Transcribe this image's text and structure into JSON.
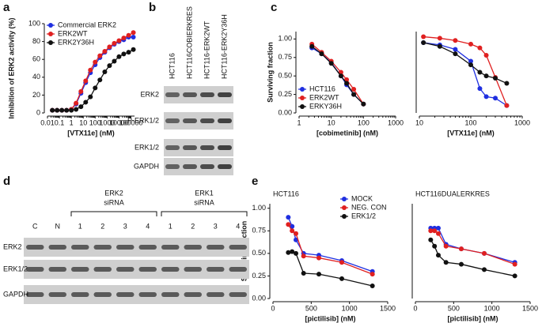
{
  "panel_labels": [
    "a",
    "b",
    "c",
    "d",
    "e"
  ],
  "chart_data": [
    {
      "type": "line",
      "xlabel": "[VTX11e] (nM)",
      "ylabel": "Inhibition of ERK2 activity (%)",
      "xscale": "log",
      "xlim": [
        0.01,
        200000
      ],
      "xticks": [
        0.01,
        0.1,
        1,
        10,
        100,
        1000,
        10000,
        100000
      ],
      "ylim": [
        0,
        100
      ],
      "yticks": [
        0,
        20,
        40,
        60,
        80,
        100
      ],
      "legend": "top-left",
      "x": [
        0.0256,
        0.064,
        0.16,
        0.4,
        1,
        2.5,
        6.4,
        16,
        40,
        100,
        250,
        640,
        1600,
        4000,
        10000,
        25000,
        64000,
        160000
      ],
      "series": [
        {
          "name": "Commercial ERK2",
          "color": "#1f2fe0",
          "values": [
            3,
            3,
            3,
            3,
            4,
            10,
            22,
            34,
            45,
            54,
            62,
            68,
            73,
            77,
            80,
            82,
            85,
            85
          ]
        },
        {
          "name": "ERK2WT",
          "color": "#e02020",
          "values": [
            3,
            3,
            3,
            3,
            4,
            11,
            24,
            36,
            48,
            57,
            64,
            69,
            74,
            78,
            81,
            84,
            87,
            90
          ]
        },
        {
          "name": "ERK2Y36H",
          "color": "#111111",
          "values": [
            3,
            3,
            3,
            3,
            3,
            4,
            7,
            12,
            18,
            28,
            37,
            46,
            53,
            58,
            63,
            66,
            68,
            71
          ]
        }
      ]
    },
    {
      "type": "line",
      "xlabel": "[cobimetinib] (nM)",
      "ylabel": "Surviving fraction",
      "xscale": "log",
      "xlim": [
        1,
        1000
      ],
      "xticks": [
        1,
        10,
        100,
        1000
      ],
      "ylim": [
        0,
        1.1
      ],
      "yticks": [
        {
          "value": 0,
          "label": "0.00"
        },
        {
          "value": 0.25,
          "label": "0.25"
        },
        {
          "value": 0.5,
          "label": "0.50"
        },
        {
          "value": 0.75,
          "label": "0.75"
        },
        {
          "value": 1,
          "label": "1.00"
        }
      ],
      "legend": "bottom-left",
      "x": [
        2.5,
        5,
        10,
        20,
        30,
        50,
        100
      ],
      "series": [
        {
          "name": "HCT116",
          "color": "#1f2fe0",
          "values": [
            0.88,
            0.8,
            0.68,
            0.5,
            0.38,
            0.25,
            0.12
          ]
        },
        {
          "name": "ERK2WT",
          "color": "#e02020",
          "values": [
            0.93,
            0.82,
            0.7,
            0.55,
            0.45,
            0.32,
            0.12
          ]
        },
        {
          "name": "ERKY36H",
          "color": "#111111",
          "values": [
            0.9,
            0.8,
            0.67,
            0.5,
            0.4,
            0.25,
            0.12
          ]
        }
      ]
    },
    {
      "type": "line",
      "xlabel": "[VTX11e] (nM)",
      "xscale": "log",
      "xlim": [
        10,
        1000
      ],
      "xticks": [
        10,
        100,
        1000
      ],
      "ylim": [
        0,
        1.1
      ],
      "x": [
        12,
        25,
        50,
        100,
        150,
        200,
        300,
        500
      ],
      "series": [
        {
          "color": "#1f2fe0",
          "values": [
            0.95,
            0.92,
            0.86,
            0.7,
            0.33,
            0.22,
            0.2,
            0.1
          ]
        },
        {
          "color": "#e02020",
          "values": [
            1.03,
            1.01,
            0.98,
            0.93,
            0.88,
            0.78,
            0.48,
            0.1
          ]
        },
        {
          "color": "#111111",
          "values": [
            0.95,
            0.9,
            0.8,
            0.65,
            0.55,
            0.5,
            0.47,
            0.4
          ]
        }
      ]
    },
    {
      "type": "line",
      "title": "HCT116",
      "xlabel": "[pictilisib] (nM)",
      "ylabel": "Surviving fraction",
      "xlim": [
        0,
        1500
      ],
      "xticks": [
        0,
        500,
        1000,
        1500
      ],
      "ylim": [
        0,
        1.05
      ],
      "yticks": [
        {
          "value": 0,
          "label": "0.00"
        },
        {
          "value": 0.25,
          "label": "0.25"
        },
        {
          "value": 0.5,
          "label": "0.50"
        },
        {
          "value": 0.75,
          "label": "0.75"
        },
        {
          "value": 1,
          "label": "1.00"
        }
      ],
      "legend": "top-right",
      "x": [
        200,
        250,
        300,
        400,
        600,
        900,
        1300
      ],
      "series": [
        {
          "name": "MOCK",
          "color": "#1f2fe0",
          "values": [
            0.9,
            0.8,
            0.65,
            0.5,
            0.48,
            0.42,
            0.3
          ]
        },
        {
          "name": "NEG. CON",
          "color": "#e02020",
          "values": [
            0.82,
            0.75,
            0.72,
            0.47,
            0.45,
            0.4,
            0.27
          ]
        },
        {
          "name": "ERK1/2",
          "color": "#111111",
          "values": [
            0.51,
            0.52,
            0.5,
            0.28,
            0.27,
            0.22,
            0.14
          ]
        }
      ]
    },
    {
      "type": "line",
      "title": "HCT116DUALERKRES",
      "xlabel": "[pictilisib] (nM)",
      "xlim": [
        0,
        1500
      ],
      "xticks": [
        0,
        500,
        1000,
        1500
      ],
      "ylim": [
        0,
        1.05
      ],
      "x": [
        200,
        250,
        300,
        400,
        600,
        900,
        1300
      ],
      "series": [
        {
          "color": "#1f2fe0",
          "values": [
            0.78,
            0.78,
            0.78,
            0.6,
            0.55,
            0.5,
            0.4
          ]
        },
        {
          "color": "#e02020",
          "values": [
            0.75,
            0.75,
            0.72,
            0.58,
            0.55,
            0.5,
            0.38
          ]
        },
        {
          "color": "#111111",
          "values": [
            0.65,
            0.58,
            0.48,
            0.4,
            0.38,
            0.32,
            0.25
          ]
        }
      ]
    }
  ],
  "blot_b": {
    "columns": [
      "HCT116",
      "HCT116COBIERKRES",
      "HCT116-ERK2WT",
      "HCT116-ERK2Y36H"
    ],
    "rows": [
      "ERK2",
      "P-ERK1/2",
      "ERK1/2",
      "GAPDH"
    ]
  },
  "blot_d": {
    "lanes": [
      "C",
      "N",
      "1",
      "2",
      "3",
      "4",
      "1",
      "2",
      "3",
      "4"
    ],
    "groups": [
      [
        "ERK2",
        "siRNA"
      ],
      [
        "ERK1",
        "siRNA"
      ]
    ],
    "rows": [
      "ERK2",
      "ERK1/2",
      "GAPDH"
    ]
  }
}
